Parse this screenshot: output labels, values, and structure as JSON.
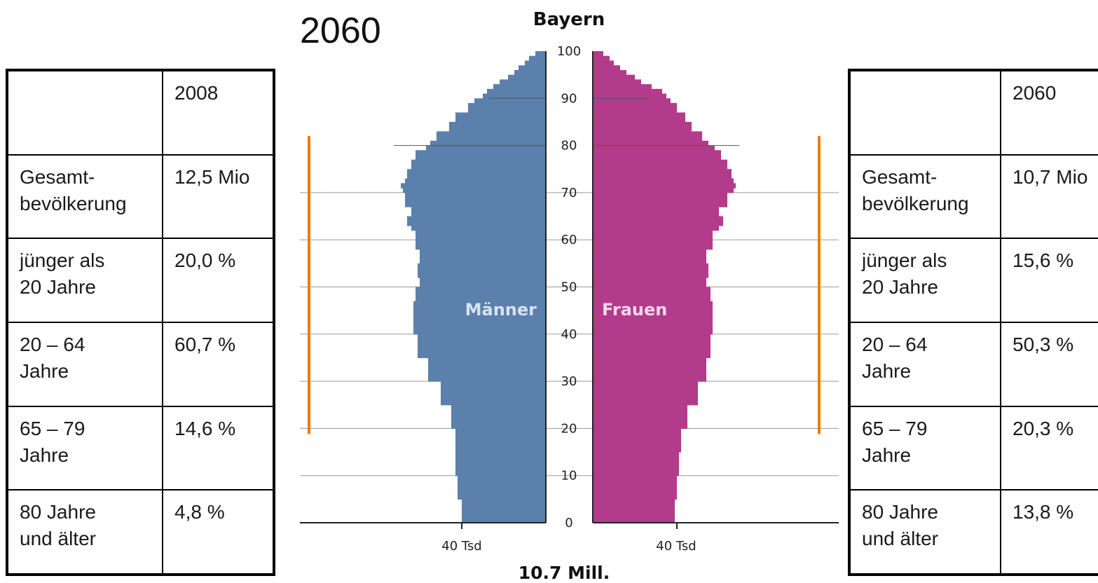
{
  "heading_year": "2060",
  "left_table": {
    "header_year": "2008",
    "rows": [
      {
        "label": "Gesamt-\nbevölkerung",
        "value": "12,5 Mio"
      },
      {
        "label": "jünger als\n20 Jahre",
        "value": "20,0 %"
      },
      {
        "label": "20 – 64\nJahre",
        "value": "60,7 %"
      },
      {
        "label": "65 – 79\nJahre",
        "value": "14,6 %"
      },
      {
        "label": "80 Jahre\nund älter",
        "value": "4,8 %"
      }
    ]
  },
  "right_table": {
    "header_year": "2060",
    "rows": [
      {
        "label": "Gesamt-\nbevölkerung",
        "value": "10,7 Mio"
      },
      {
        "label": "jünger als\n20 Jahre",
        "value": "15,6 %"
      },
      {
        "label": "20 – 64\nJahre",
        "value": "50,3 %"
      },
      {
        "label": "65 – 79\nJahre",
        "value": "20,3 %"
      },
      {
        "label": "80 Jahre\nund älter",
        "value": "13,8 %"
      }
    ]
  },
  "colors": {
    "men": "#5b80ab",
    "women": "#b23c8b",
    "highlight": "#f07a10",
    "grid": "#9a9a9a"
  },
  "chart_data": {
    "type": "bar",
    "orientation": "population-pyramid",
    "title": "Bayern",
    "total_label": "10.7 Mill.",
    "y_ticks": [
      "0",
      "10",
      "20",
      "30",
      "40",
      "50",
      "60",
      "70",
      "80",
      "90",
      "100"
    ],
    "x_tick_label": "40 Tsd",
    "ylim": [
      0,
      100
    ],
    "x_max_tsd": 75,
    "x_tick_value": 40,
    "highlight_range": [
      20,
      82
    ],
    "series": [
      {
        "name": "Männer",
        "ages": [
          0,
          5,
          10,
          15,
          20,
          25,
          30,
          35,
          40,
          45,
          47,
          50,
          52,
          55,
          58,
          62,
          63,
          65,
          67,
          70,
          71,
          72,
          73,
          75,
          77,
          79,
          80,
          81,
          83,
          85,
          87,
          89,
          90,
          91,
          92,
          93,
          94,
          95,
          96,
          97,
          98,
          99,
          100
        ],
        "values": [
          40,
          42,
          43,
          43,
          45,
          50,
          56,
          61,
          63,
          63,
          62,
          60,
          61,
          60,
          62,
          64,
          66,
          64,
          67,
          68,
          69,
          67,
          66,
          64,
          62,
          57,
          55,
          52,
          46,
          43,
          37,
          34,
          30,
          28,
          25,
          22,
          18,
          15,
          13,
          10,
          8,
          5,
          3
        ]
      },
      {
        "name": "Frauen",
        "ages": [
          0,
          5,
          10,
          15,
          20,
          25,
          30,
          35,
          40,
          45,
          47,
          50,
          52,
          55,
          58,
          62,
          63,
          65,
          67,
          70,
          71,
          72,
          73,
          75,
          77,
          79,
          80,
          81,
          83,
          85,
          87,
          89,
          90,
          91,
          92,
          93,
          94,
          95,
          96,
          97,
          98,
          99,
          100
        ],
        "values": [
          39,
          40,
          41,
          42,
          45,
          50,
          54,
          56,
          57,
          57,
          56,
          54,
          55,
          54,
          57,
          60,
          62,
          60,
          64,
          67,
          68,
          67,
          66,
          64,
          61,
          58,
          55,
          52,
          47,
          44,
          40,
          37,
          35,
          33,
          28,
          23,
          20,
          16,
          13,
          10,
          8,
          5,
          3
        ]
      }
    ]
  }
}
